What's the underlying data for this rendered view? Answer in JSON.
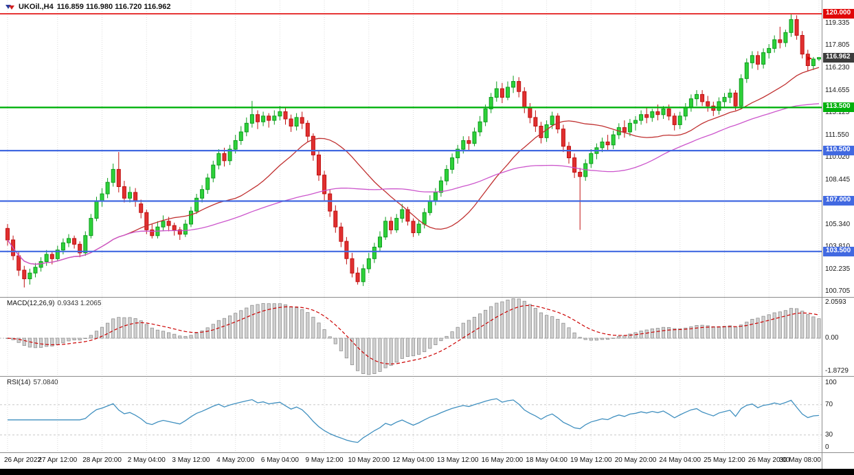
{
  "header": {
    "symbol": "UKOil.,H4",
    "ohlc": "116.859 116.980 116.720 116.962"
  },
  "colors": {
    "background": "#ffffff",
    "grid": "#dcdcdc",
    "separator": "#8c8c8c",
    "axis_text": "#1a1a1a",
    "candle_up_fill": "#2ed13a",
    "candle_up_stroke": "#0d9c1d",
    "candle_down_fill": "#e03030",
    "candle_down_stroke": "#c01010",
    "ma_fast": "#c03030",
    "ma_slow": "#cc55cc",
    "macd_hist_fill": "#d0d0d0",
    "macd_hist_stroke": "#909090",
    "macd_signal": "#cc0000",
    "macd_zero": "#b8b8b8",
    "rsi_line": "#3f8fbf",
    "rsi_levels": "#c8c8c8",
    "bottom_bar": "#000000"
  },
  "main_chart": {
    "price_min": 100.34,
    "price_max": 120.91,
    "y_ticks": [
      "119.335",
      "117.805",
      "116.230",
      "114.655",
      "113.125",
      "111.550",
      "110.020",
      "108.445",
      "106.915",
      "105.340",
      "103.810",
      "102.235",
      "100.705"
    ],
    "levels": [
      {
        "price": 120.0,
        "label": "120.000",
        "color": "#e00707",
        "width": 1.6
      },
      {
        "price": 113.5,
        "label": "113.500",
        "color": "#00b10c",
        "width": 2.4
      },
      {
        "price": 110.5,
        "label": "110.500",
        "color": "#4169e1",
        "width": 2.2
      },
      {
        "price": 107.0,
        "label": "107.000",
        "color": "#4169e1",
        "width": 2.2
      },
      {
        "price": 103.5,
        "label": "103.500",
        "color": "#4169e1",
        "width": 2.2
      }
    ],
    "current_price": {
      "value": 116.962,
      "label": "116.962",
      "badge_color": "#3c3c3c"
    },
    "marker": {
      "price": 116.9,
      "color": "#d40000"
    }
  },
  "indicators": {
    "macd": {
      "label": "MACD(12,26,9)",
      "values": "0.9343 1.2065",
      "fast": 12,
      "slow": 26,
      "signal": 9,
      "y_ticks": [
        {
          "text": "2.0593",
          "value": 2.0593
        },
        {
          "text": "0.00",
          "value": 0
        },
        {
          "text": "-1.8729",
          "value": -1.8729
        }
      ]
    },
    "rsi": {
      "label": "RSI(14)",
      "value": "57.0840",
      "period": 14,
      "levels": [
        70,
        30
      ],
      "y_ticks": [
        {
          "text": "100",
          "value": 100
        },
        {
          "text": "70",
          "value": 70
        },
        {
          "text": "30",
          "value": 30
        },
        {
          "text": "0",
          "value": 0
        }
      ]
    }
  },
  "time_axis": {
    "labels": [
      {
        "text": "26 Apr 2022",
        "index": 0
      },
      {
        "text": "27 Apr 12:00",
        "index": 9
      },
      {
        "text": "28 Apr 20:00",
        "index": 17
      },
      {
        "text": "2 May 04:00",
        "index": 25
      },
      {
        "text": "3 May 12:00",
        "index": 33
      },
      {
        "text": "4 May 20:00",
        "index": 41
      },
      {
        "text": "6 May 04:00",
        "index": 49
      },
      {
        "text": "9 May 12:00",
        "index": 57
      },
      {
        "text": "10 May 20:00",
        "index": 65
      },
      {
        "text": "12 May 04:00",
        "index": 73
      },
      {
        "text": "13 May 12:00",
        "index": 81
      },
      {
        "text": "16 May 20:00",
        "index": 89
      },
      {
        "text": "18 May 04:00",
        "index": 97
      },
      {
        "text": "19 May 12:00",
        "index": 105
      },
      {
        "text": "20 May 20:00",
        "index": 113
      },
      {
        "text": "24 May 04:00",
        "index": 121
      },
      {
        "text": "25 May 12:00",
        "index": 129
      },
      {
        "text": "26 May 20:00",
        "index": 137
      },
      {
        "text": "30 May 08:00",
        "index": 146
      }
    ]
  },
  "chart_data": {
    "type": "candlestick",
    "symbol": "UKOil.,H4",
    "timeframe": "H4",
    "ma_fast_period": 22,
    "ma_slow_period": 55,
    "candles": [
      [
        105.1,
        105.4,
        103.9,
        104.3
      ],
      [
        104.3,
        104.6,
        102.9,
        103.2
      ],
      [
        103.2,
        103.5,
        101.8,
        102.2
      ],
      [
        102.2,
        102.5,
        101.0,
        101.6
      ],
      [
        101.6,
        102.3,
        101.2,
        102.0
      ],
      [
        102.0,
        102.7,
        101.7,
        102.4
      ],
      [
        102.4,
        103.1,
        102.1,
        102.8
      ],
      [
        102.8,
        103.6,
        102.5,
        103.3
      ],
      [
        103.3,
        103.5,
        102.6,
        103.0
      ],
      [
        103.0,
        103.9,
        102.8,
        103.6
      ],
      [
        103.6,
        104.4,
        103.3,
        104.1
      ],
      [
        104.1,
        104.7,
        103.8,
        104.4
      ],
      [
        104.4,
        104.6,
        103.7,
        104.0
      ],
      [
        104.0,
        104.2,
        103.1,
        103.4
      ],
      [
        103.4,
        104.9,
        103.2,
        104.6
      ],
      [
        104.6,
        106.1,
        104.4,
        105.8
      ],
      [
        105.8,
        107.3,
        105.6,
        107.0
      ],
      [
        107.0,
        107.9,
        106.6,
        107.5
      ],
      [
        107.5,
        108.6,
        107.2,
        108.3
      ],
      [
        108.3,
        109.6,
        108.0,
        109.2
      ],
      [
        109.2,
        110.4,
        107.6,
        108.0
      ],
      [
        108.0,
        108.4,
        106.9,
        107.2
      ],
      [
        107.2,
        108.0,
        106.9,
        107.6
      ],
      [
        107.6,
        107.9,
        106.6,
        107.0
      ],
      [
        106.8,
        107.1,
        105.8,
        106.2
      ],
      [
        106.2,
        106.4,
        104.7,
        105.0
      ],
      [
        105.0,
        105.4,
        104.4,
        104.6
      ],
      [
        104.6,
        105.6,
        104.4,
        105.2
      ],
      [
        105.2,
        106.0,
        104.9,
        105.6
      ],
      [
        105.6,
        105.9,
        104.9,
        105.3
      ],
      [
        105.3,
        105.5,
        104.6,
        105.0
      ],
      [
        105.0,
        105.2,
        104.3,
        104.7
      ],
      [
        104.7,
        105.7,
        104.5,
        105.4
      ],
      [
        105.4,
        106.6,
        105.2,
        106.3
      ],
      [
        106.3,
        107.5,
        106.1,
        107.2
      ],
      [
        107.2,
        108.1,
        106.9,
        107.8
      ],
      [
        107.8,
        108.9,
        107.5,
        108.6
      ],
      [
        108.6,
        109.8,
        108.3,
        109.5
      ],
      [
        109.5,
        110.6,
        109.2,
        110.3
      ],
      [
        110.3,
        110.7,
        109.4,
        109.8
      ],
      [
        109.8,
        110.9,
        109.5,
        110.6
      ],
      [
        110.6,
        111.6,
        110.3,
        111.2
      ],
      [
        111.2,
        112.2,
        110.9,
        111.8
      ],
      [
        111.8,
        112.8,
        111.5,
        112.4
      ],
      [
        112.4,
        113.95,
        112.1,
        113.0
      ],
      [
        113.0,
        113.3,
        112.0,
        112.5
      ],
      [
        112.5,
        113.2,
        112.2,
        112.9
      ],
      [
        112.9,
        113.1,
        112.1,
        112.6
      ],
      [
        112.6,
        113.3,
        112.3,
        112.9
      ],
      [
        112.9,
        113.6,
        112.6,
        113.2
      ],
      [
        113.2,
        113.5,
        112.3,
        112.7
      ],
      [
        112.7,
        113.0,
        111.8,
        112.2
      ],
      [
        112.2,
        113.1,
        111.9,
        112.8
      ],
      [
        112.8,
        113.2,
        112.0,
        112.4
      ],
      [
        112.4,
        112.6,
        111.1,
        111.5
      ],
      [
        111.5,
        111.7,
        109.8,
        110.2
      ],
      [
        110.2,
        110.5,
        108.4,
        108.8
      ],
      [
        108.8,
        109.1,
        107.0,
        107.5
      ],
      [
        107.5,
        107.8,
        105.9,
        106.3
      ],
      [
        106.3,
        106.7,
        104.8,
        105.2
      ],
      [
        105.2,
        105.5,
        103.8,
        104.2
      ],
      [
        104.2,
        104.5,
        102.6,
        103.0
      ],
      [
        103.0,
        103.4,
        101.7,
        102.0
      ],
      [
        102.0,
        102.4,
        101.2,
        101.4
      ],
      [
        101.4,
        102.6,
        101.1,
        102.3
      ],
      [
        102.3,
        103.4,
        102.0,
        103.0
      ],
      [
        103.0,
        104.1,
        102.7,
        103.8
      ],
      [
        103.8,
        104.9,
        103.5,
        104.5
      ],
      [
        104.5,
        105.9,
        104.3,
        105.6
      ],
      [
        105.6,
        105.9,
        104.7,
        105.0
      ],
      [
        105.0,
        106.1,
        104.8,
        105.8
      ],
      [
        105.8,
        106.8,
        105.5,
        106.4
      ],
      [
        106.4,
        106.6,
        105.3,
        105.6
      ],
      [
        105.6,
        105.8,
        104.5,
        104.8
      ],
      [
        104.8,
        105.7,
        104.6,
        105.4
      ],
      [
        105.4,
        106.5,
        105.1,
        106.2
      ],
      [
        106.2,
        107.4,
        106.0,
        107.0
      ],
      [
        107.0,
        107.9,
        106.7,
        107.6
      ],
      [
        107.6,
        108.7,
        107.3,
        108.4
      ],
      [
        108.4,
        109.5,
        108.1,
        109.2
      ],
      [
        109.2,
        110.3,
        108.9,
        110.0
      ],
      [
        110.0,
        110.9,
        109.6,
        110.6
      ],
      [
        110.6,
        111.5,
        110.3,
        111.2
      ],
      [
        111.2,
        111.5,
        110.5,
        111.0
      ],
      [
        111.0,
        112.1,
        110.8,
        111.8
      ],
      [
        111.8,
        112.9,
        111.5,
        112.5
      ],
      [
        112.5,
        113.7,
        112.2,
        113.4
      ],
      [
        113.4,
        114.5,
        113.1,
        114.2
      ],
      [
        114.2,
        115.3,
        113.9,
        114.8
      ],
      [
        114.8,
        115.2,
        113.8,
        114.2
      ],
      [
        114.2,
        115.3,
        114.0,
        114.9
      ],
      [
        114.9,
        115.7,
        114.5,
        115.3
      ],
      [
        115.3,
        115.6,
        114.2,
        114.6
      ],
      [
        114.6,
        114.9,
        113.1,
        113.5
      ],
      [
        113.5,
        113.8,
        112.4,
        112.8
      ],
      [
        112.8,
        113.3,
        111.8,
        112.2
      ],
      [
        112.2,
        112.5,
        111.0,
        111.4
      ],
      [
        111.4,
        112.6,
        111.1,
        112.3
      ],
      [
        112.3,
        113.2,
        112.0,
        112.9
      ],
      [
        112.9,
        113.1,
        111.7,
        112.0
      ],
      [
        112.0,
        112.3,
        110.4,
        110.8
      ],
      [
        110.8,
        111.1,
        109.6,
        110.0
      ],
      [
        110.0,
        110.3,
        108.6,
        109.0
      ],
      [
        109.0,
        109.3,
        105.0,
        108.7
      ],
      [
        108.7,
        109.9,
        108.4,
        109.6
      ],
      [
        109.6,
        110.6,
        109.3,
        110.3
      ],
      [
        110.3,
        111.0,
        109.9,
        110.7
      ],
      [
        110.7,
        111.4,
        110.4,
        111.1
      ],
      [
        111.1,
        111.6,
        110.5,
        110.9
      ],
      [
        110.9,
        111.9,
        110.6,
        111.6
      ],
      [
        111.6,
        112.4,
        111.3,
        112.1
      ],
      [
        112.1,
        112.6,
        111.4,
        111.8
      ],
      [
        111.8,
        112.7,
        111.5,
        112.4
      ],
      [
        112.4,
        112.9,
        111.9,
        112.6
      ],
      [
        112.6,
        113.3,
        112.3,
        113.0
      ],
      [
        113.0,
        113.5,
        112.4,
        112.8
      ],
      [
        112.8,
        113.4,
        112.5,
        113.2
      ],
      [
        113.2,
        113.7,
        112.6,
        113.0
      ],
      [
        113.0,
        113.6,
        112.7,
        113.4
      ],
      [
        113.4,
        113.7,
        112.6,
        112.9
      ],
      [
        112.9,
        113.1,
        111.9,
        112.3
      ],
      [
        112.3,
        113.2,
        112.0,
        112.9
      ],
      [
        112.9,
        113.8,
        112.6,
        113.5
      ],
      [
        113.5,
        114.4,
        113.2,
        114.1
      ],
      [
        114.1,
        114.7,
        113.6,
        114.4
      ],
      [
        114.4,
        114.7,
        113.6,
        113.9
      ],
      [
        113.9,
        114.3,
        113.2,
        113.6
      ],
      [
        113.6,
        113.9,
        112.9,
        113.3
      ],
      [
        113.3,
        114.2,
        113.0,
        113.9
      ],
      [
        113.9,
        114.5,
        113.5,
        114.2
      ],
      [
        114.2,
        114.8,
        113.8,
        114.5
      ],
      [
        114.5,
        114.7,
        113.3,
        113.6
      ],
      [
        113.6,
        115.8,
        113.4,
        115.5
      ],
      [
        115.5,
        116.9,
        115.2,
        116.6
      ],
      [
        116.6,
        117.4,
        116.2,
        117.1
      ],
      [
        117.1,
        117.4,
        116.1,
        116.5
      ],
      [
        116.5,
        117.6,
        116.2,
        117.3
      ],
      [
        117.3,
        117.9,
        116.9,
        117.6
      ],
      [
        117.6,
        118.5,
        117.3,
        118.2
      ],
      [
        118.2,
        119.1,
        117.6,
        118.0
      ],
      [
        118.0,
        118.9,
        117.7,
        118.7
      ],
      [
        118.7,
        119.95,
        118.4,
        119.6
      ],
      [
        119.6,
        119.9,
        118.2,
        118.5
      ],
      [
        118.5,
        118.8,
        116.9,
        117.2
      ],
      [
        117.2,
        117.5,
        116.0,
        116.4
      ],
      [
        116.4,
        117.0,
        116.1,
        116.86
      ],
      [
        116.859,
        116.98,
        116.72,
        116.962
      ]
    ]
  }
}
